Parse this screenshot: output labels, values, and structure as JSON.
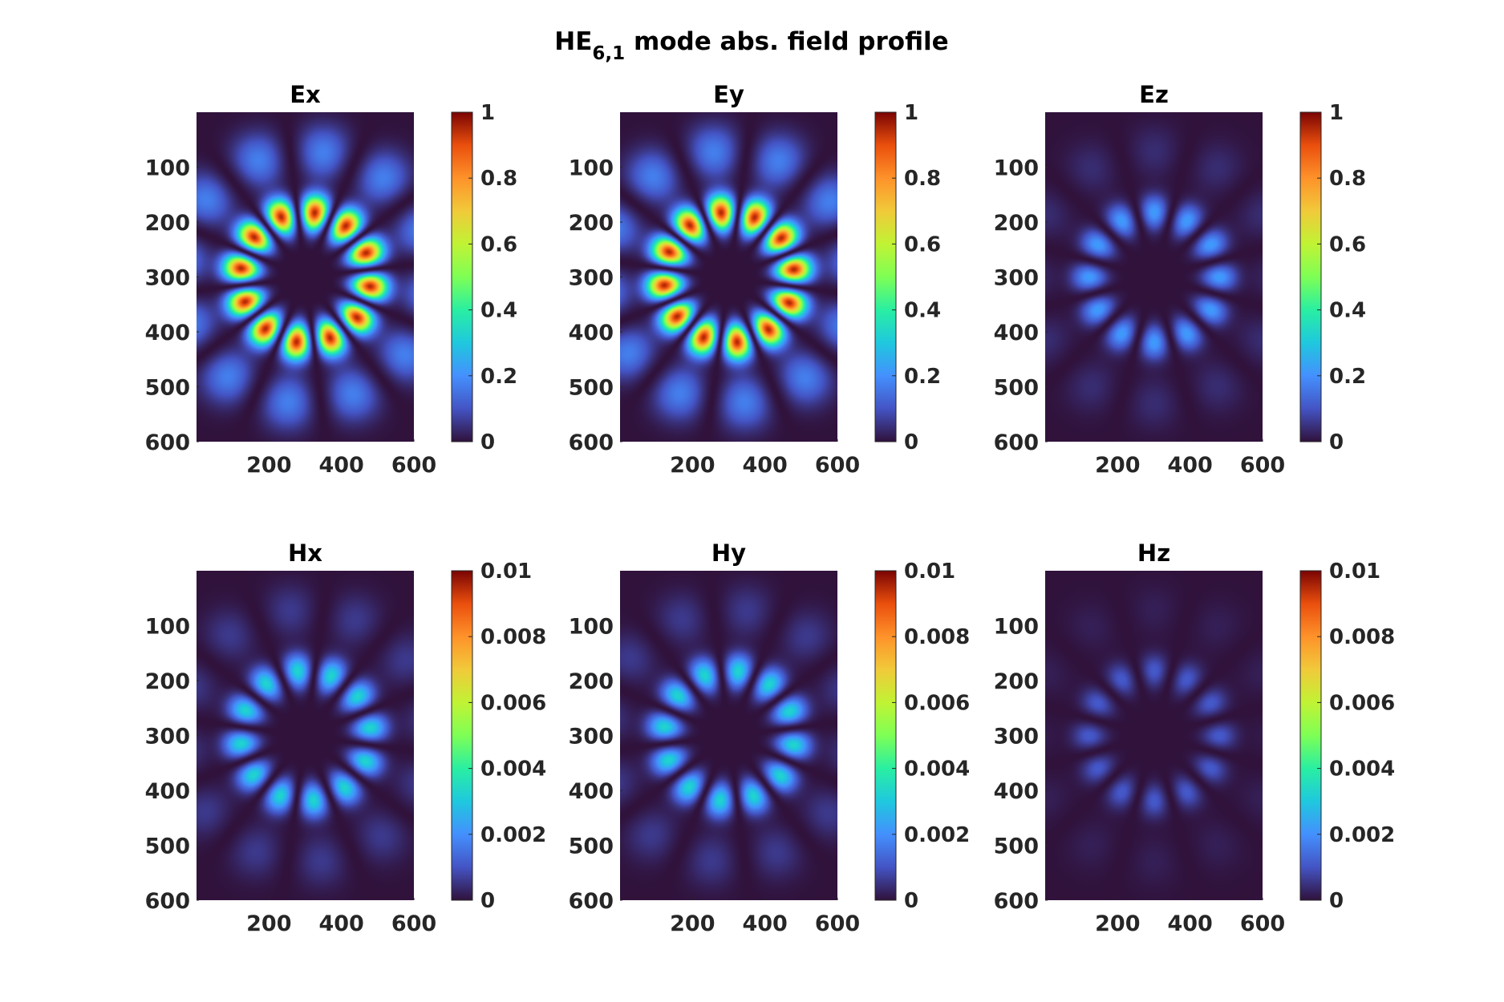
{
  "figure": {
    "title_main": "HE",
    "title_sub": "6,1",
    "title_rest": " mode abs. field profile"
  },
  "chart_data": [
    {
      "type": "heatmap",
      "title": "Ex",
      "xticks": [
        "200",
        "400",
        "600"
      ],
      "yticks": [
        "100",
        "200",
        "300",
        "400",
        "500",
        "600"
      ],
      "xlim": [
        0,
        600
      ],
      "ylim": [
        0,
        600
      ],
      "colorbar": {
        "ticks": [
          "0",
          "0.2",
          "0.4",
          "0.6",
          "0.8",
          "1"
        ],
        "range": [
          0,
          1
        ]
      },
      "pattern": {
        "lobes": 12,
        "ring_peak": 0.95,
        "rotation_deg": -8,
        "min": 0,
        "max": 1
      }
    },
    {
      "type": "heatmap",
      "title": "Ey",
      "xticks": [
        "200",
        "400",
        "600"
      ],
      "yticks": [
        "100",
        "200",
        "300",
        "400",
        "500",
        "600"
      ],
      "xlim": [
        0,
        600
      ],
      "ylim": [
        0,
        600
      ],
      "colorbar": {
        "ticks": [
          "0",
          "0.2",
          "0.4",
          "0.6",
          "0.8",
          "1"
        ],
        "range": [
          0,
          1
        ]
      },
      "pattern": {
        "lobes": 12,
        "ring_peak": 0.95,
        "rotation_deg": 7,
        "min": 0,
        "max": 1
      }
    },
    {
      "type": "heatmap",
      "title": "Ez",
      "xticks": [
        "200",
        "400",
        "600"
      ],
      "yticks": [
        "100",
        "200",
        "300",
        "400",
        "500",
        "600"
      ],
      "xlim": [
        0,
        600
      ],
      "ylim": [
        0,
        600
      ],
      "colorbar": {
        "ticks": [
          "0",
          "0.2",
          "0.4",
          "0.6",
          "0.8",
          "1"
        ],
        "range": [
          0,
          1
        ]
      },
      "pattern": {
        "lobes": 12,
        "ring_peak": 0.22,
        "rotation_deg": 0,
        "min": 0,
        "max": 1
      }
    },
    {
      "type": "heatmap",
      "title": "Hx",
      "xticks": [
        "200",
        "400",
        "600"
      ],
      "yticks": [
        "100",
        "200",
        "300",
        "400",
        "500",
        "600"
      ],
      "xlim": [
        0,
        600
      ],
      "ylim": [
        0,
        600
      ],
      "colorbar": {
        "ticks": [
          "0",
          "0.002",
          "0.004",
          "0.006",
          "0.008",
          "0.01"
        ],
        "range": [
          0,
          0.01
        ]
      },
      "pattern": {
        "lobes": 12,
        "ring_peak": 0.0033,
        "rotation_deg": 7,
        "min": 0,
        "max": 0.01
      }
    },
    {
      "type": "heatmap",
      "title": "Hy",
      "xticks": [
        "200",
        "400",
        "600"
      ],
      "yticks": [
        "100",
        "200",
        "300",
        "400",
        "500",
        "600"
      ],
      "xlim": [
        0,
        600
      ],
      "ylim": [
        0,
        600
      ],
      "colorbar": {
        "ticks": [
          "0",
          "0.002",
          "0.004",
          "0.006",
          "0.008",
          "0.01"
        ],
        "range": [
          0,
          0.01
        ]
      },
      "pattern": {
        "lobes": 12,
        "ring_peak": 0.0033,
        "rotation_deg": -8,
        "min": 0,
        "max": 0.01
      }
    },
    {
      "type": "heatmap",
      "title": "Hz",
      "xticks": [
        "200",
        "400",
        "600"
      ],
      "yticks": [
        "100",
        "200",
        "300",
        "400",
        "500",
        "600"
      ],
      "xlim": [
        0,
        600
      ],
      "ylim": [
        0,
        600
      ],
      "colorbar": {
        "ticks": [
          "0",
          "0.002",
          "0.004",
          "0.006",
          "0.008",
          "0.01"
        ],
        "range": [
          0,
          0.01
        ]
      },
      "pattern": {
        "lobes": 12,
        "ring_peak": 0.0011,
        "rotation_deg": 0,
        "min": 0,
        "max": 0.01
      }
    }
  ]
}
